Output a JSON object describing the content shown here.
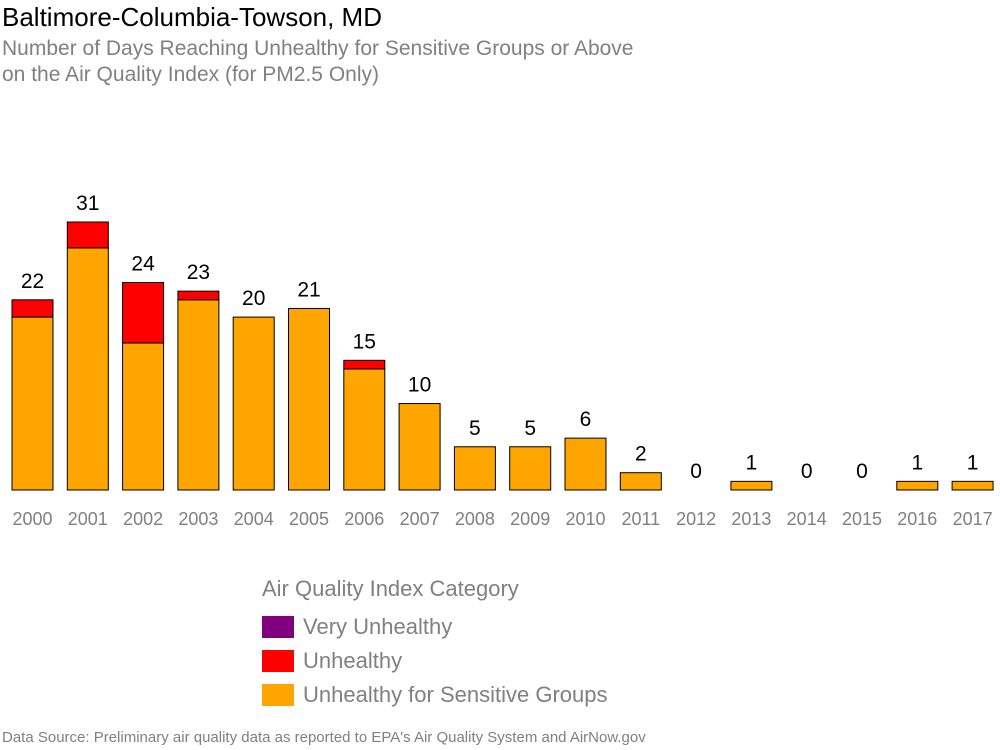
{
  "chart_data": {
    "type": "bar",
    "stacked": true,
    "title": "Baltimore-Columbia-Towson, MD",
    "subtitle": [
      "Number of Days Reaching Unhealthy for Sensitive Groups or Above",
      "on the Air Quality Index (for PM2.5 Only)"
    ],
    "categories": [
      "2000",
      "2001",
      "2002",
      "2003",
      "2004",
      "2005",
      "2006",
      "2007",
      "2008",
      "2009",
      "2010",
      "2011",
      "2012",
      "2013",
      "2014",
      "2015",
      "2016",
      "2017"
    ],
    "series": [
      {
        "name": "Unhealthy for Sensitive Groups",
        "color": "#FFA500",
        "values": [
          20,
          28,
          17,
          22,
          20,
          21,
          14,
          10,
          5,
          5,
          6,
          2,
          0,
          1,
          0,
          0,
          1,
          1
        ]
      },
      {
        "name": "Unhealthy",
        "color": "#FF0000",
        "values": [
          2,
          3,
          7,
          1,
          0,
          0,
          1,
          0,
          0,
          0,
          0,
          0,
          0,
          0,
          0,
          0,
          0,
          0
        ]
      },
      {
        "name": "Very Unhealthy",
        "color": "#800080",
        "values": [
          0,
          0,
          0,
          0,
          0,
          0,
          0,
          0,
          0,
          0,
          0,
          0,
          0,
          0,
          0,
          0,
          0,
          0
        ]
      }
    ],
    "totals": [
      22,
      31,
      24,
      23,
      20,
      21,
      15,
      10,
      5,
      5,
      6,
      2,
      0,
      1,
      0,
      0,
      1,
      1
    ],
    "ylim": [
      0,
      31
    ],
    "grid": false,
    "legend": {
      "title": "Air Quality Index Category",
      "placement": "bottom",
      "items": [
        {
          "label": "Very Unhealthy",
          "color": "#800080"
        },
        {
          "label": "Unhealthy",
          "color": "#FF0000"
        },
        {
          "label": "Unhealthy for Sensitive Groups",
          "color": "#FFA500"
        }
      ]
    },
    "source": "Data Source: Preliminary air quality data as reported to EPA's Air Quality System and AirNow.gov"
  }
}
